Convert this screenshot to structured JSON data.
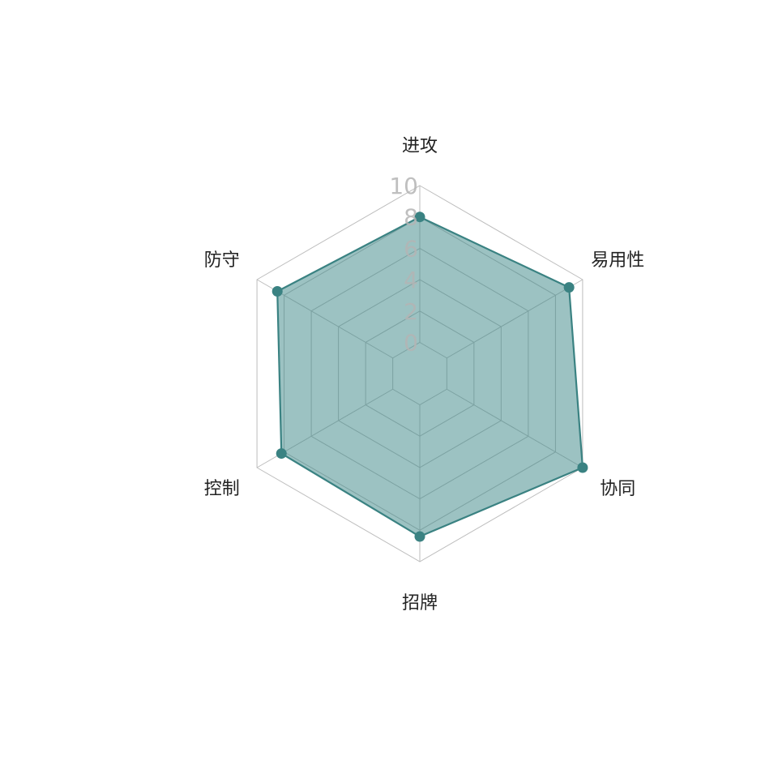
{
  "chart_data": {
    "type": "radar",
    "title": "",
    "axes": [
      "进攻",
      "易用性",
      "协同",
      "招牌",
      "控制",
      "防守"
    ],
    "series": [
      {
        "values": [
          8,
          9,
          10,
          8.4,
          8.2,
          8.5
        ]
      }
    ],
    "radial_range": [
      0,
      10
    ],
    "radial_ticks": [
      "0",
      "2",
      "4",
      "6",
      "8",
      "10"
    ],
    "grid": true,
    "colors": {
      "fill": "#3a8585",
      "stroke": "#3a8282",
      "grid": "#bdbdbd",
      "tick": "#b4b4b4"
    }
  }
}
